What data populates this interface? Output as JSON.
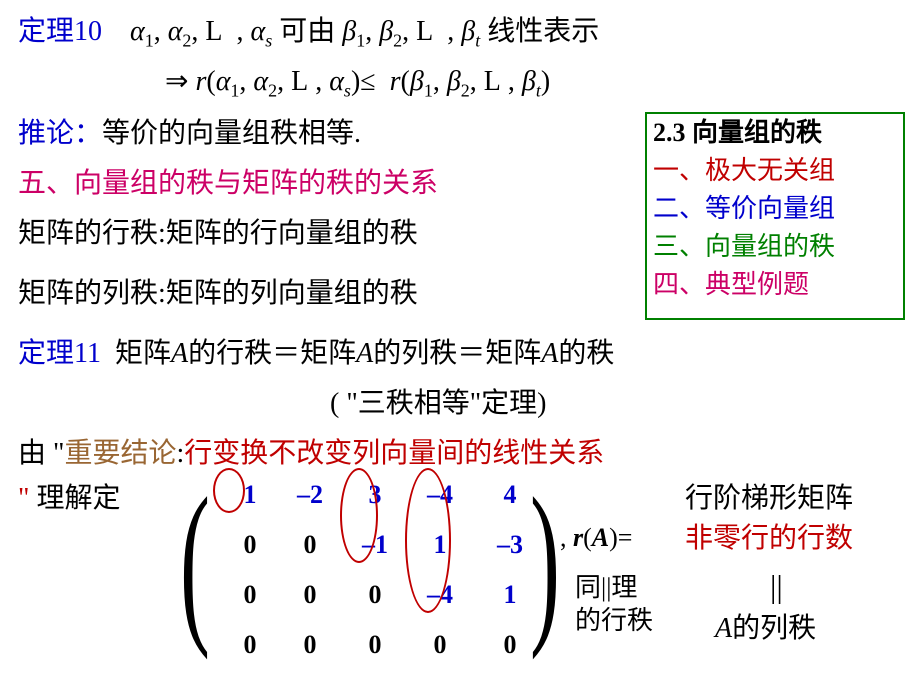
{
  "colors": {
    "blue": "#0000cc",
    "magenta": "#cc0066",
    "red": "#c00000",
    "green": "#008000",
    "black": "#000000",
    "brown": "#996633"
  },
  "theorem10": {
    "label": "定理10",
    "line1_prefix": "",
    "seq1_a": "α",
    "seq1_b": "α",
    "seq1_L": "L",
    "seq1_c": "α",
    "mid": "可由",
    "seq2_a": "β",
    "seq2_b": "β",
    "seq2_L": "L",
    "seq2_c": "β",
    "suffix": "线性表示",
    "sub1": "1",
    "sub2": "2",
    "subs": "s",
    "subt": "t",
    "arrow": "⇒",
    "r": "r",
    "le": "≤"
  },
  "corollary": {
    "label": "推论：",
    "text": "等价的向量组秩相等."
  },
  "section5": "五、向量组的秩与矩阵的秩的关系",
  "rank_row": "矩阵的行秩:矩阵的行向量组的秩",
  "rank_col": "矩阵的列秩:矩阵的列向量组的秩",
  "toc": {
    "title": "2.3  向量组的秩",
    "item1": "一、极大无关组",
    "item2": "二、等价向量组",
    "item3": "三、向量组的秩",
    "item4": "四、典型例题",
    "title_color": "#000000",
    "item1_color": "#c00000",
    "item2_color": "#0000cc",
    "item3_color": "#008000",
    "item4_color": "#cc0066"
  },
  "theorem11": {
    "label": "定理11",
    "text": "矩阵",
    "A": "A",
    "row_rank": "的行秩＝矩阵",
    "col_rank": "的列秩＝矩阵",
    "rank": "的秩",
    "paren_text": "( \"三秩相等\"定理)"
  },
  "conclusion": {
    "prefix1": "由",
    "quote1": "\"",
    "important": "重要结论",
    "colon": ":",
    "text": "行变换不改变列向量间的线性关系",
    "prefix2": "\"",
    "understand": "   理解定"
  },
  "matrix": {
    "data": [
      [
        "1",
        "–2",
        "3",
        "–4",
        "4"
      ],
      [
        "0",
        "0",
        "–1",
        "1",
        "–3"
      ],
      [
        "0",
        "0",
        "0",
        "–4",
        "1"
      ],
      [
        "0",
        "0",
        "0",
        "0",
        "0"
      ]
    ],
    "blue_cells": [
      [
        0,
        0
      ],
      [
        0,
        1
      ],
      [
        0,
        2
      ],
      [
        0,
        3
      ],
      [
        0,
        4
      ],
      [
        1,
        2
      ],
      [
        1,
        3
      ],
      [
        1,
        4
      ],
      [
        2,
        3
      ],
      [
        2,
        4
      ]
    ],
    "rA_prefix": ", ",
    "rA_r": "r",
    "rA_paren": "(",
    "rA_A": "A",
    "rA_close": ")=",
    "echelon": "行阶梯形矩阵",
    "nonzero": "非零行的行数",
    "tongli": "同||理",
    "row_rank": "的行秩",
    "A_col": "A",
    "col_rank": "的列秩",
    "eq": "||"
  }
}
